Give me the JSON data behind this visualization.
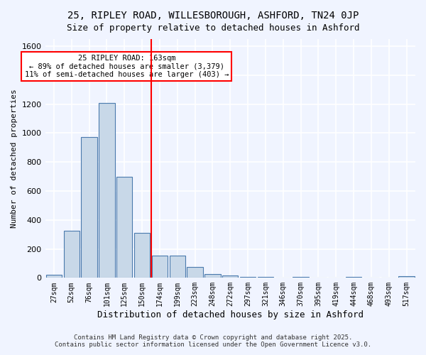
{
  "title1": "25, RIPLEY ROAD, WILLESBOROUGH, ASHFORD, TN24 0JP",
  "title2": "Size of property relative to detached houses in Ashford",
  "xlabel": "Distribution of detached houses by size in Ashford",
  "ylabel": "Number of detached properties",
  "categories": [
    "27sqm",
    "52sqm",
    "76sqm",
    "101sqm",
    "125sqm",
    "150sqm",
    "174sqm",
    "199sqm",
    "223sqm",
    "248sqm",
    "272sqm",
    "297sqm",
    "321sqm",
    "346sqm",
    "370sqm",
    "395sqm",
    "419sqm",
    "444sqm",
    "468sqm",
    "493sqm",
    "517sqm"
  ],
  "values": [
    20,
    325,
    975,
    1210,
    700,
    310,
    155,
    155,
    75,
    25,
    15,
    5,
    5,
    0,
    5,
    0,
    0,
    5,
    0,
    0,
    10
  ],
  "bar_color": "#c8d8e8",
  "bar_edge_color": "#4a7aad",
  "red_line_x": 5.5,
  "annotation_title": "25 RIPLEY ROAD: 163sqm",
  "annotation_line1": "← 89% of detached houses are smaller (3,379)",
  "annotation_line2": "11% of semi-detached houses are larger (403) →",
  "ylim": [
    0,
    1650
  ],
  "yticks": [
    0,
    200,
    400,
    600,
    800,
    1000,
    1200,
    1400,
    1600
  ],
  "footer1": "Contains HM Land Registry data © Crown copyright and database right 2025.",
  "footer2": "Contains public sector information licensed under the Open Government Licence v3.0.",
  "bg_color": "#f0f4ff",
  "grid_color": "#ffffff"
}
